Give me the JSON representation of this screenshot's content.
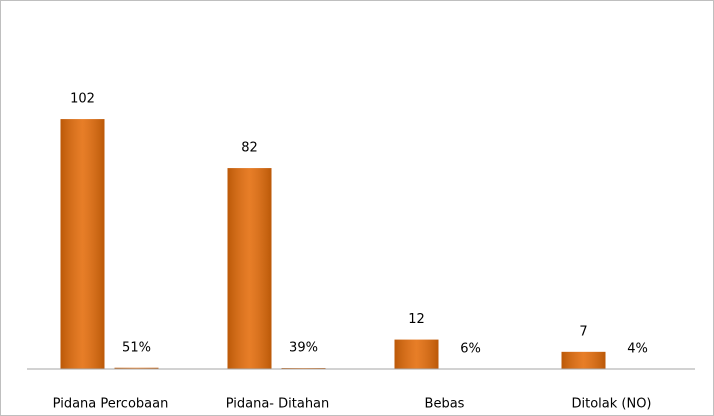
{
  "chart_data": {
    "type": "bar",
    "categories": [
      "Pidana Percobaan",
      "Pidana- Ditahan",
      "Bebas",
      "Ditolak (NO)"
    ],
    "series": [
      {
        "color": "#e46c0a",
        "values": [
          102,
          82,
          12,
          7
        ]
      },
      {
        "color": "#e46c0a",
        "values": [
          0.51,
          0.39,
          0.06,
          0.04
        ],
        "value_labels": [
          "51%",
          "39%",
          "6%",
          "4%"
        ]
      }
    ],
    "ylim": [
      0,
      120
    ]
  }
}
